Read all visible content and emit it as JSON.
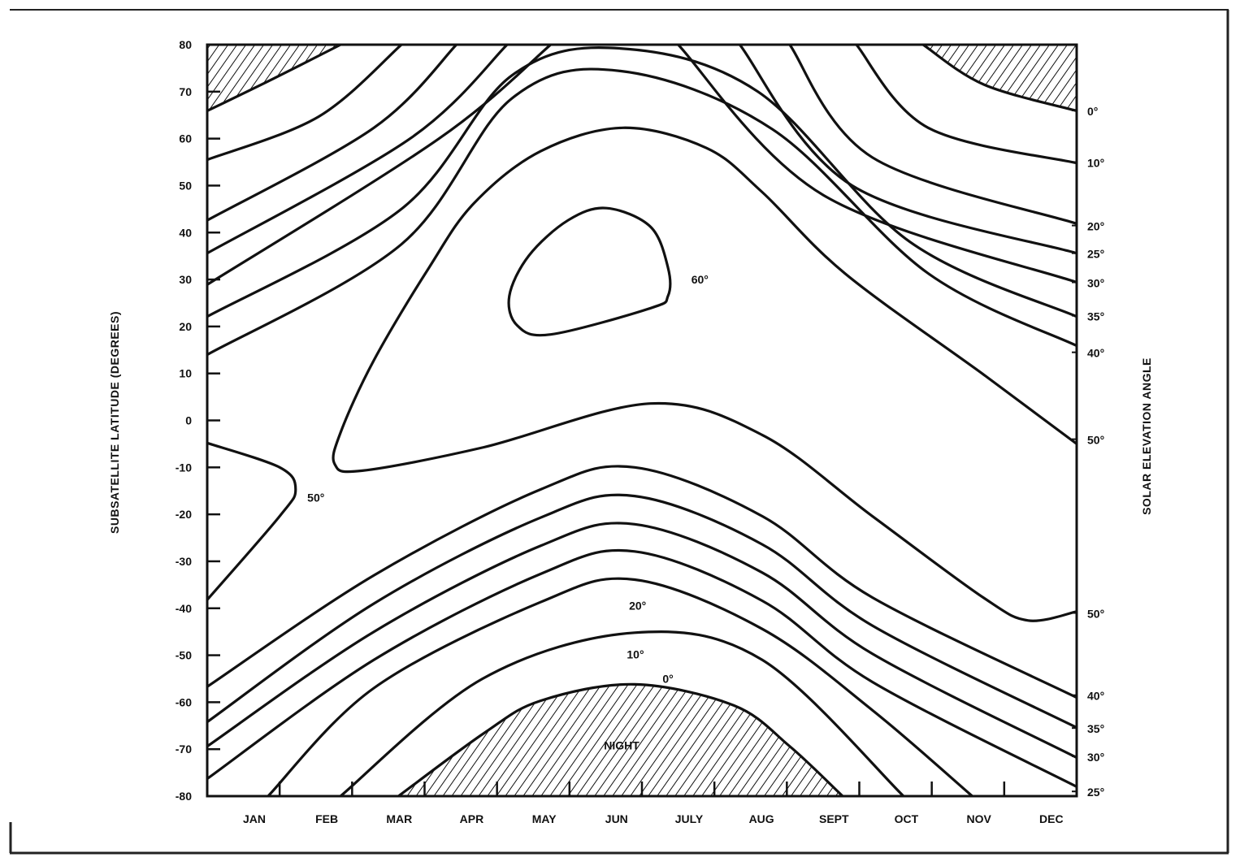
{
  "chart_data": {
    "type": "line",
    "subtype": "contour",
    "title": "",
    "ylabel": "SUBSATELLITE LATITUDE (DEGREES)",
    "ylabel_right": "SOLAR ELEVATION ANGLE",
    "xlabel": "",
    "xlim": [
      0,
      12
    ],
    "ylim": [
      -80,
      80
    ],
    "x_units": "months from start of January",
    "y_ticks": [
      80,
      70,
      60,
      50,
      40,
      30,
      20,
      10,
      0,
      -10,
      -20,
      -30,
      -40,
      -50,
      -60,
      -70,
      -80
    ],
    "y_tick_labels": [
      "80",
      "70",
      "60",
      "50",
      "40",
      "30",
      "20",
      "10",
      "0",
      "-10",
      "-20",
      "-30",
      "-40",
      "-50",
      "-60",
      "-70",
      "-80"
    ],
    "x_ticks": [
      1,
      2,
      3,
      4,
      5,
      6,
      7,
      8,
      9,
      10,
      11
    ],
    "month_labels": [
      "JAN",
      "FEB",
      "MAR",
      "APR",
      "MAY",
      "JUN",
      "JULY",
      "AUG",
      "SEPT",
      "OCT",
      "NOV",
      "DEC"
    ],
    "right_labels": [
      {
        "text": "0°",
        "lat": 66
      },
      {
        "text": "10°",
        "lat": 55
      },
      {
        "text": "20°",
        "lat": 41.5
      },
      {
        "text": "25°",
        "lat": 35.6
      },
      {
        "text": "30°",
        "lat": 29.4
      },
      {
        "text": "35°",
        "lat": 22.3
      },
      {
        "text": "40°",
        "lat": 14.5
      },
      {
        "text": "50°",
        "lat": -4
      },
      {
        "text": "50°",
        "lat": -41
      },
      {
        "text": "40°",
        "lat": -58.5
      },
      {
        "text": "35°",
        "lat": -65.5
      },
      {
        "text": "30°",
        "lat": -71.5
      },
      {
        "text": "25°",
        "lat": -79
      }
    ],
    "annotations": [
      {
        "text": "60°",
        "x": 6.8,
        "lat": 30
      },
      {
        "text": "50°",
        "x": 1.5,
        "lat": -16.4
      },
      {
        "text": "20°",
        "x": 5.94,
        "lat": -39.4
      },
      {
        "text": "10°",
        "x": 5.91,
        "lat": -49.8
      },
      {
        "text": "0°",
        "x": 6.36,
        "lat": -55
      },
      {
        "text": "NIGHT",
        "x": 5.72,
        "lat": -69.2
      }
    ],
    "hatched_regions": [
      "north-polar-night-left",
      "north-polar-night-right",
      "southern-night"
    ],
    "contours": [
      {
        "level": 0,
        "segments": [
          [
            [
              0,
              65.9
            ],
            [
              0.92,
              72.8
            ],
            [
              1.84,
              80
            ]
          ],
          [
            [
              9.88,
              80
            ],
            [
              10.72,
              71.5
            ],
            [
              12,
              65.9
            ]
          ],
          [
            [
              2.64,
              -80
            ],
            [
              3.82,
              -66.6
            ],
            [
              4.6,
              -59.7
            ],
            [
              5.9,
              -56.2
            ],
            [
              7.27,
              -60.7
            ],
            [
              8.04,
              -69.4
            ],
            [
              8.77,
              -80
            ]
          ]
        ]
      },
      {
        "level": 10,
        "segments": [
          [
            [
              0,
              55.5
            ],
            [
              1.54,
              64.7
            ],
            [
              2.68,
              80
            ]
          ],
          [
            [
              8.96,
              80
            ],
            [
              9.95,
              62.3
            ],
            [
              12,
              54.8
            ]
          ],
          [
            [
              1.84,
              -80
            ],
            [
              3.8,
              -55
            ],
            [
              5.9,
              -45.2
            ],
            [
              7.66,
              -51
            ],
            [
              9.61,
              -80
            ]
          ]
        ]
      },
      {
        "level": 20,
        "segments": [
          [
            [
              0,
              42.6
            ],
            [
              2.3,
              62.3
            ],
            [
              3.44,
              80
            ]
          ],
          [
            [
              8.04,
              80
            ],
            [
              9.18,
              56
            ],
            [
              12,
              41.9
            ]
          ],
          [
            [
              0.84,
              -80
            ],
            [
              2.3,
              -57
            ],
            [
              4.6,
              -38.7
            ],
            [
              5.9,
              -33.9
            ],
            [
              7.66,
              -44.4
            ],
            [
              9.18,
              -61.7
            ],
            [
              10.56,
              -80
            ]
          ]
        ]
      },
      {
        "level": 25,
        "segments": [
          [
            [
              0,
              35.6
            ],
            [
              2.8,
              60
            ],
            [
              4.14,
              80
            ]
          ],
          [
            [
              7.35,
              80
            ],
            [
              8.9,
              50
            ],
            [
              12,
              35.6
            ]
          ],
          [
            [
              0,
              -76.3
            ],
            [
              2.3,
              -51
            ],
            [
              4.6,
              -32.7
            ],
            [
              5.9,
              -27.9
            ],
            [
              7.66,
              -38.4
            ],
            [
              9.18,
              -55.7
            ],
            [
              12,
              -78
            ]
          ]
        ]
      },
      {
        "level": 30,
        "segments": [
          [
            [
              0,
              28.9
            ],
            [
              3.2,
              60
            ],
            [
              4.74,
              80
            ]
          ],
          [
            [
              6.5,
              80
            ],
            [
              8.5,
              48
            ],
            [
              12,
              29.4
            ]
          ],
          [
            [
              0,
              -69.4
            ],
            [
              2.3,
              -45
            ],
            [
              4.6,
              -26.7
            ],
            [
              5.9,
              -22.1
            ],
            [
              7.66,
              -32.4
            ],
            [
              9.18,
              -49.7
            ],
            [
              12,
              -71.8
            ]
          ]
        ]
      },
      {
        "level": 35,
        "segments": [
          [
            [
              0,
              22.1
            ],
            [
              2.68,
              45
            ],
            [
              4.2,
              73.4
            ],
            [
              5.7,
              79.2
            ],
            [
              7.6,
              70
            ],
            [
              9.7,
              38
            ],
            [
              12,
              22.1
            ]
          ],
          [
            [
              0,
              -64.2
            ],
            [
              2.3,
              -39
            ],
            [
              4.6,
              -20.7
            ],
            [
              5.9,
              -16.1
            ],
            [
              7.66,
              -26.4
            ],
            [
              9.18,
              -43.7
            ],
            [
              12,
              -65.4
            ]
          ]
        ]
      },
      {
        "level": 40,
        "segments": [
          [
            [
              0,
              14
            ],
            [
              2.68,
              37.5
            ],
            [
              4.2,
              68.5
            ],
            [
              5.7,
              74.4
            ],
            [
              7.8,
              62
            ],
            [
              9.95,
              31.3
            ],
            [
              12,
              15.9
            ]
          ],
          [
            [
              0,
              -56.7
            ],
            [
              2.3,
              -33
            ],
            [
              4.6,
              -14.7
            ],
            [
              5.9,
              -10
            ],
            [
              7.66,
              -20.4
            ],
            [
              9.18,
              -37.7
            ],
            [
              12,
              -59
            ]
          ]
        ]
      },
      {
        "level": 50,
        "segments": [
          [
            [
              12,
              -5
            ],
            [
              10.72,
              9.7
            ],
            [
              8.8,
              31.3
            ],
            [
              7.66,
              48.6
            ],
            [
              6.89,
              58
            ],
            [
              5.74,
              62.3
            ],
            [
              4.6,
              57.3
            ],
            [
              3.68,
              46.2
            ],
            [
              3.06,
              32.5
            ],
            [
              2.3,
              12.8
            ],
            [
              1.84,
              -2.6
            ],
            [
              1.76,
              -9.3
            ],
            [
              2.14,
              -10.7
            ],
            [
              3.82,
              -5.7
            ],
            [
              6.12,
              3.6
            ],
            [
              7.66,
              -3.1
            ],
            [
              9.18,
              -20.4
            ],
            [
              10.71,
              -37.7
            ],
            [
              11.33,
              -42.6
            ],
            [
              12,
              -40.7
            ]
          ],
          [
            [
              0,
              -4.8
            ],
            [
              1.0,
              -10
            ],
            [
              1.22,
              -14.7
            ],
            [
              1.0,
              -20.4
            ],
            [
              0,
              -38.2
            ]
          ]
        ]
      },
      {
        "level": 60,
        "closed": true,
        "segments": [
          [
            [
              5.51,
              45.2
            ],
            [
              6.12,
              41.2
            ],
            [
              6.36,
              32.5
            ],
            [
              6.36,
              26.5
            ],
            [
              6.12,
              23.9
            ],
            [
              4.74,
              18.3
            ],
            [
              4.28,
              20.2
            ],
            [
              4.17,
              26.5
            ],
            [
              4.44,
              35.1
            ],
            [
              4.98,
              42.6
            ]
          ]
        ]
      }
    ]
  }
}
